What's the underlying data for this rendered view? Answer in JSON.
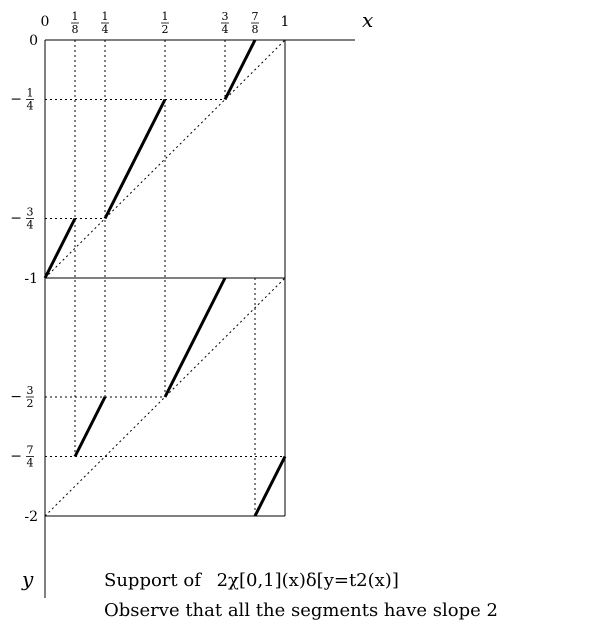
{
  "x_axis": {
    "name": "x",
    "ticks": [
      {
        "x": 0,
        "label": "0"
      },
      {
        "x": 0.125,
        "num": "1",
        "den": "8"
      },
      {
        "x": 0.25,
        "num": "1",
        "den": "4"
      },
      {
        "x": 0.5,
        "num": "1",
        "den": "2"
      },
      {
        "x": 0.75,
        "num": "3",
        "den": "4"
      },
      {
        "x": 0.875,
        "num": "7",
        "den": "8"
      },
      {
        "x": 1,
        "label": "1"
      }
    ]
  },
  "y_axis": {
    "name": "y",
    "ticks": [
      {
        "y": 0,
        "label": "0"
      },
      {
        "y": -0.25,
        "sign": "−",
        "num": "1",
        "den": "4"
      },
      {
        "y": -0.75,
        "sign": "−",
        "num": "3",
        "den": "4"
      },
      {
        "y": -1,
        "label": "-1"
      },
      {
        "y": -1.5,
        "sign": "−",
        "num": "3",
        "den": "2"
      },
      {
        "y": -1.75,
        "sign": "−",
        "num": "7",
        "den": "4"
      },
      {
        "y": -2,
        "label": "-2"
      }
    ]
  },
  "segments": [
    [
      [
        0,
        -1
      ],
      [
        0.125,
        -0.75
      ]
    ],
    [
      [
        0.25,
        -0.75
      ],
      [
        0.5,
        -0.25
      ]
    ],
    [
      [
        0.75,
        -0.25
      ],
      [
        0.875,
        0
      ]
    ],
    [
      [
        0.125,
        -1.75
      ],
      [
        0.25,
        -1.5
      ]
    ],
    [
      [
        0.5,
        -1.5
      ],
      [
        0.75,
        -1
      ]
    ],
    [
      [
        0.875,
        -2
      ],
      [
        1,
        -1.75
      ]
    ]
  ],
  "caption": {
    "line1_text": "Support of",
    "line1_math": "2χ[0,1](x)δ[y=t2(x)]",
    "line2": "Observe that all the segments have slope 2"
  }
}
